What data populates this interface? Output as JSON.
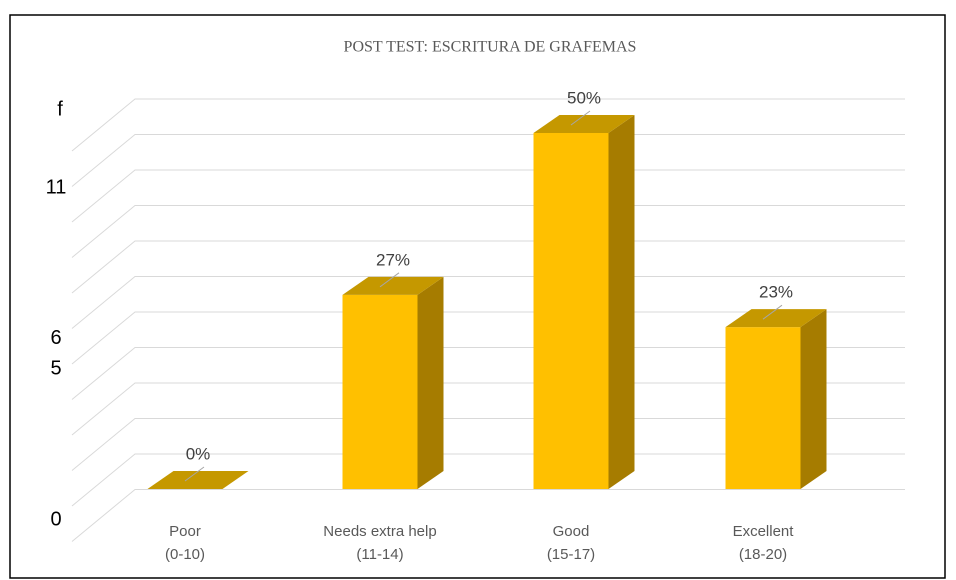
{
  "chart_data": {
    "type": "bar3d",
    "title": "POST TEST: ESCRITURA DE GRAFEMAS",
    "y_label": "f",
    "categories": [
      "Poor\n(0-10)",
      "Needs extra help\n(11-14)",
      "Good\n(15-17)",
      "Excellent\n(18-20)"
    ],
    "values": [
      0,
      6,
      11,
      5
    ],
    "value_labels": [
      "0%",
      "27%",
      "50%",
      "23%"
    ],
    "color": "#FFC000",
    "ylim": [
      0,
      11
    ],
    "yticks": [
      0,
      5,
      6,
      11
    ],
    "grid": true
  }
}
